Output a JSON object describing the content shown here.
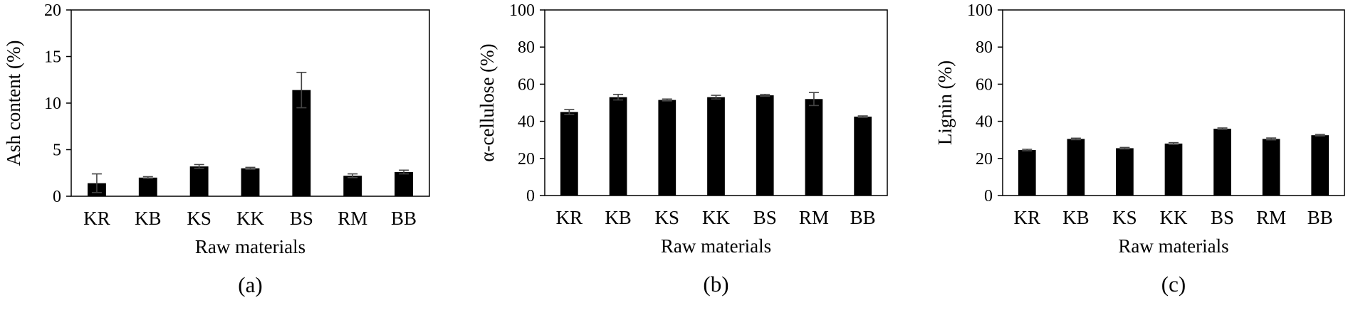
{
  "chart_data": [
    {
      "type": "bar",
      "panel_label": "(a)",
      "categories": [
        "KR",
        "KB",
        "KS",
        "KK",
        "BS",
        "RM",
        "BB"
      ],
      "values": [
        1.4,
        2.0,
        3.2,
        3.0,
        11.4,
        2.2,
        2.6
      ],
      "errors": [
        1.0,
        0.1,
        0.2,
        0.1,
        1.9,
        0.2,
        0.2
      ],
      "xlabel": "Raw materials",
      "ylabel": "Ash content (%)",
      "ylim": [
        0,
        20
      ],
      "yticks": [
        "0",
        "5",
        "10",
        "15",
        "20"
      ],
      "grid": false
    },
    {
      "type": "bar",
      "panel_label": "(b)",
      "categories": [
        "KR",
        "KB",
        "KS",
        "KK",
        "BS",
        "RM",
        "BB"
      ],
      "values": [
        45,
        53,
        51.5,
        53,
        54,
        52,
        42.5
      ],
      "errors": [
        1.3,
        1.5,
        0.5,
        1.0,
        0.5,
        3.5,
        0.4
      ],
      "xlabel": "Raw materials",
      "ylabel": "α-cellulose (%)",
      "ylim": [
        0,
        100
      ],
      "yticks": [
        "0",
        "20",
        "40",
        "60",
        "80",
        "100"
      ],
      "grid": false
    },
    {
      "type": "bar",
      "panel_label": "(c)",
      "categories": [
        "KR",
        "KB",
        "KS",
        "KK",
        "BS",
        "RM",
        "BB"
      ],
      "values": [
        24.5,
        30.5,
        25.5,
        28,
        36,
        30.5,
        32.5
      ],
      "errors": [
        0.4,
        0.4,
        0.4,
        0.5,
        0.4,
        0.5,
        0.4
      ],
      "xlabel": "Raw materials",
      "ylabel": "Lignin (%)",
      "ylim": [
        0,
        100
      ],
      "yticks": [
        "0",
        "20",
        "40",
        "60",
        "80",
        "100"
      ],
      "grid": false
    }
  ]
}
